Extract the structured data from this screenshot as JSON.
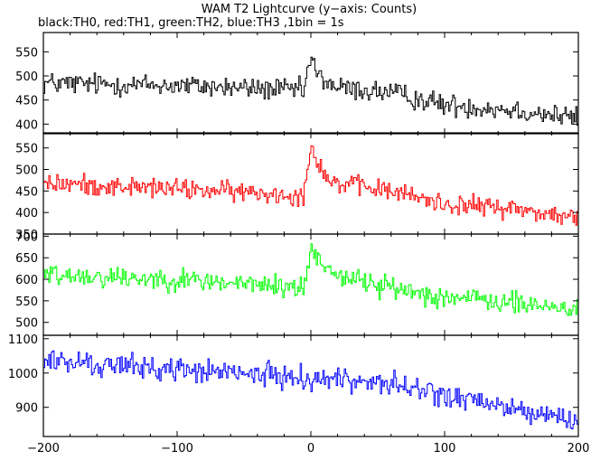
{
  "chart_data": {
    "type": "line",
    "title": "WAM T2 Lightcurve (y−axis: Counts)",
    "subtitle": "black:TH0, red:TH1, green:TH2, blue:TH3 ,1bin = 1s",
    "xlim": [
      -200,
      200
    ],
    "x_ticks": [
      -200,
      -100,
      0,
      100,
      200
    ],
    "x_tick_labels": [
      "−200",
      "−100",
      "0",
      "100",
      "200"
    ],
    "x_step": 1,
    "grid": false,
    "panels": [
      {
        "series_name": "TH0",
        "color": "#000000",
        "ylim": [
          380,
          590
        ],
        "y_ticks": [
          400,
          450,
          500,
          550
        ],
        "trend": [
          [
            -200,
            485
          ],
          [
            -100,
            480
          ],
          [
            -5,
            470
          ],
          [
            0,
            540
          ],
          [
            5,
            500
          ],
          [
            20,
            475
          ],
          [
            60,
            465
          ],
          [
            100,
            440
          ],
          [
            150,
            430
          ],
          [
            200,
            412
          ]
        ],
        "noise": 20
      },
      {
        "series_name": "TH1",
        "color": "#ff0000",
        "ylim": [
          350,
          585
        ],
        "y_ticks": [
          350,
          400,
          450,
          500,
          550
        ],
        "trend": [
          [
            -200,
            468
          ],
          [
            -100,
            455
          ],
          [
            -5,
            440
          ],
          [
            0,
            560
          ],
          [
            5,
            520
          ],
          [
            15,
            470
          ],
          [
            60,
            450
          ],
          [
            100,
            420
          ],
          [
            150,
            410
          ],
          [
            200,
            385
          ]
        ],
        "noise": 20
      },
      {
        "series_name": "TH2",
        "color": "#00ff00",
        "ylim": [
          470,
          705
        ],
        "y_ticks": [
          500,
          550,
          600,
          650,
          700
        ],
        "trend": [
          [
            -200,
            612
          ],
          [
            -100,
            600
          ],
          [
            -5,
            580
          ],
          [
            0,
            670
          ],
          [
            5,
            650
          ],
          [
            20,
            610
          ],
          [
            60,
            580
          ],
          [
            100,
            560
          ],
          [
            150,
            545
          ],
          [
            200,
            530
          ]
        ],
        "noise": 22
      },
      {
        "series_name": "TH3",
        "color": "#0000ff",
        "ylim": [
          815,
          1110
        ],
        "y_ticks": [
          900,
          1000,
          1100
        ],
        "trend": [
          [
            -200,
            1035
          ],
          [
            -100,
            1010
          ],
          [
            0,
            985
          ],
          [
            50,
            975
          ],
          [
            100,
            935
          ],
          [
            150,
            895
          ],
          [
            200,
            860
          ]
        ],
        "noise": 30
      }
    ]
  }
}
